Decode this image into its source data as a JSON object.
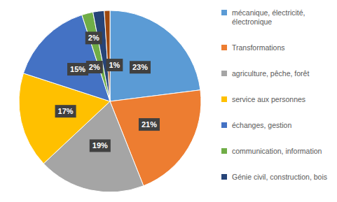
{
  "chart_data": {
    "type": "pie",
    "categories": [
      "mécanique, électricité, électronique",
      "Transformations",
      "agriculture, pêche, forêt",
      "service aux personnes",
      "échanges, gestion",
      "communication, information",
      "Génie civil, construction, bois",
      null
    ],
    "values": [
      23,
      21,
      19,
      17,
      15,
      2,
      2,
      1
    ],
    "value_labels": [
      "23%",
      "21%",
      "19%",
      "17%",
      "15%",
      "2%",
      "2%",
      "1%"
    ],
    "colors": [
      "#5b9bd5",
      "#ed7d31",
      "#a5a5a5",
      "#ffc000",
      "#4472c4",
      "#70ad47",
      "#264478",
      "#9e480e"
    ],
    "data_labels": true,
    "legend": "right"
  }
}
